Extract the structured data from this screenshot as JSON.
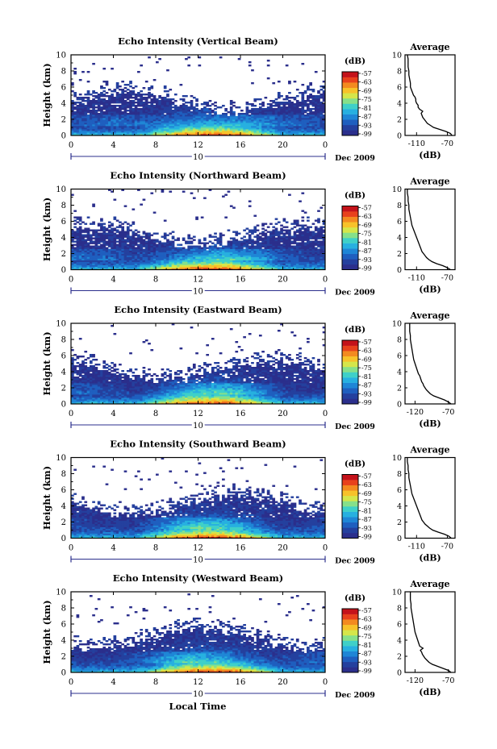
{
  "footer": {
    "xlabel": "Local Time"
  },
  "colorbar": {
    "unit": "(dB)",
    "ticks": [
      "-57",
      "-63",
      "-69",
      "-75",
      "-81",
      "-87",
      "-93",
      "-99"
    ],
    "palette": [
      "#2b2f8c",
      "#24409e",
      "#1f5fbf",
      "#1f86d6",
      "#27b0e0",
      "#3fd0c8",
      "#86e08a",
      "#d5e64a",
      "#f7c22a",
      "#f38a20",
      "#e8411c",
      "#c4121a"
    ]
  },
  "chart_data": [
    {
      "type": "heatmap",
      "title": "Echo Intensity (Vertical Beam)",
      "ylabel": "Height (km)",
      "xlim": [
        0,
        24
      ],
      "ylim": [
        0,
        10
      ],
      "xticks": [
        "0",
        "4",
        "8",
        "12",
        "16",
        "20",
        "0"
      ],
      "yticks": [
        "0",
        "2",
        "4",
        "6",
        "8",
        "10"
      ],
      "day": "10",
      "month_year": "Dec 2009",
      "profile": {
        "title": "Average",
        "xlabel": "(dB)",
        "xlim": [
          -125,
          -60
        ],
        "xtick_labels": [
          "-110",
          "-70"
        ],
        "xtick_values": [
          -110,
          -70
        ],
        "height": [
          0,
          0.25,
          0.5,
          0.75,
          1,
          1.25,
          1.5,
          1.75,
          2,
          2.25,
          2.5,
          2.75,
          3,
          3.25,
          3.5,
          3.75,
          4,
          4.25,
          4.5,
          4.75,
          5,
          5.5,
          6,
          6.5,
          7,
          7.5,
          8,
          8.5,
          9,
          9.5,
          10
        ],
        "values": [
          -64,
          -66,
          -72,
          -80,
          -88,
          -92,
          -96,
          -98,
          -100,
          -102,
          -103,
          -104,
          -102,
          -106,
          -108,
          -108,
          -110,
          -111,
          -111,
          -112,
          -114,
          -116,
          -118,
          -118,
          -119,
          -120,
          -120,
          -121,
          -121,
          -121,
          -122
        ]
      }
    },
    {
      "type": "heatmap",
      "title": "Echo Intensity (Northward Beam)",
      "ylabel": "Height (km)",
      "xlim": [
        0,
        24
      ],
      "ylim": [
        0,
        10
      ],
      "xticks": [
        "0",
        "4",
        "8",
        "12",
        "16",
        "20",
        "0"
      ],
      "yticks": [
        "0",
        "2",
        "4",
        "6",
        "8",
        "10"
      ],
      "day": "10",
      "month_year": "Dec 2009",
      "profile": {
        "title": "Average",
        "xlabel": "(dB)",
        "xlim": [
          -125,
          -60
        ],
        "xtick_labels": [
          "-110",
          "-70"
        ],
        "xtick_values": [
          -110,
          -70
        ],
        "height": [
          0,
          0.25,
          0.5,
          0.75,
          1,
          1.25,
          1.5,
          1.75,
          2,
          2.25,
          2.5,
          2.75,
          3,
          3.25,
          3.5,
          3.75,
          4,
          4.25,
          4.5,
          4.75,
          5,
          5.5,
          6,
          6.5,
          7,
          7.5,
          8,
          8.5,
          9,
          9.5,
          10
        ],
        "values": [
          -66,
          -70,
          -76,
          -84,
          -90,
          -94,
          -97,
          -99,
          -101,
          -103,
          -104,
          -105,
          -106,
          -107,
          -108,
          -109,
          -110,
          -111,
          -112,
          -113,
          -114,
          -116,
          -117,
          -118,
          -119,
          -120,
          -120,
          -121,
          -121,
          -122,
          -122
        ]
      }
    },
    {
      "type": "heatmap",
      "title": "Echo Intensity (Eastward Beam)",
      "ylabel": "Height (km)",
      "xlim": [
        0,
        24
      ],
      "ylim": [
        0,
        10
      ],
      "xticks": [
        "0",
        "4",
        "8",
        "12",
        "16",
        "20",
        "0"
      ],
      "yticks": [
        "0",
        "2",
        "4",
        "6",
        "8",
        "10"
      ],
      "day": "10",
      "month_year": "Dec 2009",
      "profile": {
        "title": "Average",
        "xlabel": "(dB)",
        "xlim": [
          -135,
          -60
        ],
        "xtick_labels": [
          "-120",
          "-70"
        ],
        "xtick_values": [
          -120,
          -70
        ],
        "height": [
          0,
          0.25,
          0.5,
          0.75,
          1,
          1.25,
          1.5,
          1.75,
          2,
          2.25,
          2.5,
          2.75,
          3,
          3.25,
          3.5,
          3.75,
          4,
          4.25,
          4.5,
          4.75,
          5,
          5.5,
          6,
          6.5,
          7,
          7.5,
          8,
          8.5,
          9,
          9.5,
          10
        ],
        "values": [
          -66,
          -70,
          -76,
          -84,
          -92,
          -97,
          -100,
          -103,
          -105,
          -107,
          -108,
          -110,
          -111,
          -112,
          -113,
          -115,
          -116,
          -117,
          -118,
          -119,
          -120,
          -122,
          -123,
          -124,
          -125,
          -126,
          -127,
          -127,
          -128,
          -128,
          -128
        ]
      }
    },
    {
      "type": "heatmap",
      "title": "Echo Intensity (Southward Beam)",
      "ylabel": "Height (km)",
      "xlim": [
        0,
        24
      ],
      "ylim": [
        0,
        10
      ],
      "xticks": [
        "0",
        "4",
        "8",
        "12",
        "16",
        "20",
        "0"
      ],
      "yticks": [
        "0",
        "2",
        "4",
        "6",
        "8",
        "10"
      ],
      "day": "10",
      "month_year": "Dec 2009",
      "profile": {
        "title": "Average",
        "xlabel": "(dB)",
        "xlim": [
          -125,
          -60
        ],
        "xtick_labels": [
          "-110",
          "-70"
        ],
        "xtick_values": [
          -110,
          -70
        ],
        "height": [
          0,
          0.25,
          0.5,
          0.75,
          1,
          1.25,
          1.5,
          1.75,
          2,
          2.25,
          2.5,
          2.75,
          3,
          3.25,
          3.5,
          3.75,
          4,
          4.25,
          4.5,
          4.75,
          5,
          5.5,
          6,
          6.5,
          7,
          7.5,
          8,
          8.5,
          9,
          9.5,
          10
        ],
        "values": [
          -65,
          -68,
          -74,
          -82,
          -89,
          -93,
          -96,
          -99,
          -101,
          -103,
          -104,
          -105,
          -106,
          -107,
          -108,
          -109,
          -110,
          -111,
          -112,
          -113,
          -114,
          -116,
          -117,
          -118,
          -119,
          -120,
          -120,
          -121,
          -121,
          -122,
          -122
        ]
      }
    },
    {
      "type": "heatmap",
      "title": "Echo Intensity (Westward Beam)",
      "ylabel": "Height (km)",
      "xlim": [
        0,
        24
      ],
      "ylim": [
        0,
        10
      ],
      "xticks": [
        "0",
        "4",
        "8",
        "12",
        "16",
        "20",
        "0"
      ],
      "yticks": [
        "0",
        "2",
        "4",
        "6",
        "8",
        "10"
      ],
      "day": "10",
      "month_year": "Dec 2009",
      "profile": {
        "title": "Average",
        "xlabel": "(dB)",
        "xlim": [
          -135,
          -60
        ],
        "xtick_labels": [
          "-120",
          "-70"
        ],
        "xtick_values": [
          -120,
          -70
        ],
        "height": [
          0,
          0.25,
          0.5,
          0.75,
          1,
          1.25,
          1.5,
          1.75,
          2,
          2.25,
          2.5,
          2.75,
          3,
          3.25,
          3.5,
          3.75,
          4,
          4.25,
          4.5,
          4.75,
          5,
          5.5,
          6,
          6.5,
          7,
          7.5,
          8,
          8.5,
          9,
          9.5,
          10
        ],
        "values": [
          -66,
          -70,
          -78,
          -86,
          -94,
          -99,
          -102,
          -105,
          -107,
          -109,
          -110,
          -112,
          -108,
          -113,
          -114,
          -115,
          -116,
          -117,
          -118,
          -119,
          -120,
          -121,
          -122,
          -123,
          -124,
          -125,
          -126,
          -126,
          -127,
          -127,
          -127
        ]
      }
    }
  ]
}
